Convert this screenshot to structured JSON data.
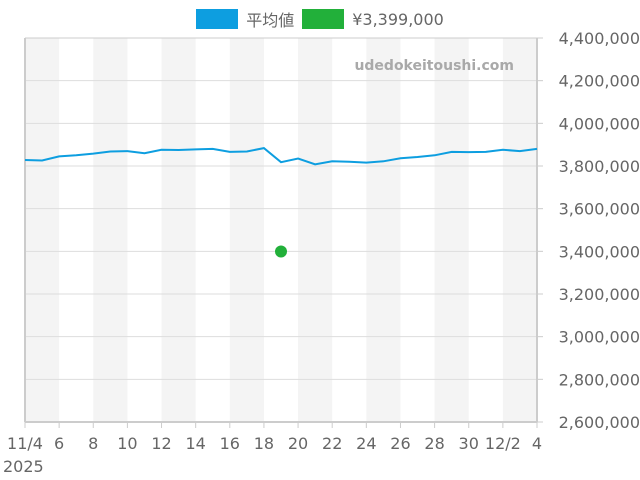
{
  "legend": [
    {
      "label": "平均値",
      "color": "#0d9ee0"
    },
    {
      "label": "¥3,399,000",
      "color": "#22b03a"
    }
  ],
  "watermark": "udedokeitoushi.com",
  "colors": {
    "line": "#0d9ee0",
    "point": "#22b03a",
    "band": "#f4f4f4",
    "grid": "#dddddd",
    "axis": "#cccccc",
    "tick_text": "#666666",
    "watermark": "#a9a9a9"
  },
  "chart_data": {
    "type": "line",
    "title": "",
    "xlabel": "",
    "ylabel": "",
    "ylim": [
      2600000,
      4400000
    ],
    "y_ticks": [
      "4,400,000",
      "4,200,000",
      "4,000,000",
      "3,800,000",
      "3,600,000",
      "3,400,000",
      "3,200,000",
      "3,000,000",
      "2,800,000",
      "2,600,000"
    ],
    "y_tick_values": [
      4400000,
      4200000,
      4000000,
      3800000,
      3600000,
      3400000,
      3200000,
      3000000,
      2800000,
      2600000
    ],
    "x_ticks": [
      {
        "day": 0,
        "label": "11/4"
      },
      {
        "day": 2,
        "label": "6"
      },
      {
        "day": 4,
        "label": "8"
      },
      {
        "day": 6,
        "label": "10"
      },
      {
        "day": 8,
        "label": "12"
      },
      {
        "day": 10,
        "label": "14"
      },
      {
        "day": 12,
        "label": "16"
      },
      {
        "day": 14,
        "label": "18"
      },
      {
        "day": 16,
        "label": "20"
      },
      {
        "day": 18,
        "label": "22"
      },
      {
        "day": 20,
        "label": "24"
      },
      {
        "day": 22,
        "label": "26"
      },
      {
        "day": 24,
        "label": "28"
      },
      {
        "day": 26,
        "label": "30"
      },
      {
        "day": 28,
        "label": "12/2"
      },
      {
        "day": 30,
        "label": "4"
      }
    ],
    "x_year_label": "2025",
    "x": [
      "11/4",
      "11/5",
      "11/6",
      "11/7",
      "11/8",
      "11/9",
      "11/10",
      "11/11",
      "11/12",
      "11/13",
      "11/14",
      "11/15",
      "11/16",
      "11/17",
      "11/18",
      "11/19",
      "11/20",
      "11/21",
      "11/22",
      "11/23",
      "11/24",
      "11/25",
      "11/26",
      "11/27",
      "11/28",
      "11/29",
      "11/30",
      "12/1",
      "12/2",
      "12/3",
      "12/4"
    ],
    "series": [
      {
        "name": "平均値",
        "type": "line",
        "color": "#0d9ee0",
        "values": [
          3828000,
          3826000,
          3845000,
          3850000,
          3858000,
          3868000,
          3870000,
          3860000,
          3876000,
          3875000,
          3878000,
          3880000,
          3866000,
          3868000,
          3884000,
          3818000,
          3835000,
          3808000,
          3822000,
          3820000,
          3816000,
          3822000,
          3836000,
          3842000,
          3850000,
          3866000,
          3865000,
          3866000,
          3876000,
          3870000,
          3880000
        ]
      },
      {
        "name": "¥3,399,000",
        "type": "scatter",
        "color": "#22b03a",
        "points": [
          {
            "x": "11/19",
            "day": 15,
            "y": 3399000
          }
        ]
      }
    ],
    "grid": true,
    "alternating_bands": true,
    "legend_position": "top",
    "y_axis_position": "right"
  }
}
